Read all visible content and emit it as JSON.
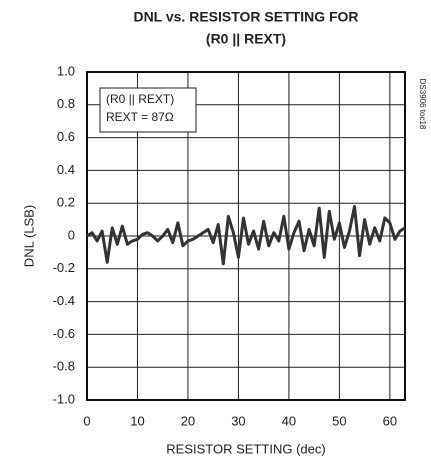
{
  "chart_data": {
    "type": "line",
    "title": "DNL vs. RESISTOR SETTING FOR",
    "subtitle": "(R0 || REXT)",
    "xlabel": "RESISTOR SETTING (dec)",
    "ylabel": "DNL (LSB)",
    "annotations": [
      "(R0 || REXT)",
      "REXT = 87Ω"
    ],
    "side_note": "DS3906 toc18",
    "x": [
      0,
      1,
      2,
      3,
      4,
      5,
      6,
      7,
      8,
      9,
      10,
      11,
      12,
      13,
      14,
      15,
      16,
      17,
      18,
      19,
      20,
      21,
      22,
      23,
      24,
      25,
      26,
      27,
      28,
      29,
      30,
      31,
      32,
      33,
      34,
      35,
      36,
      37,
      38,
      39,
      40,
      41,
      42,
      43,
      44,
      45,
      46,
      47,
      48,
      49,
      50,
      51,
      52,
      53,
      54,
      55,
      56,
      57,
      58,
      59,
      60,
      61,
      62,
      63
    ],
    "series": [
      {
        "name": "DNL",
        "color": "#333333",
        "values": [
          0.0,
          0.02,
          -0.03,
          0.03,
          -0.16,
          0.05,
          -0.05,
          0.06,
          -0.05,
          -0.03,
          -0.02,
          0.01,
          0.02,
          0.0,
          -0.03,
          0.0,
          0.04,
          -0.04,
          0.08,
          -0.06,
          -0.03,
          -0.02,
          0.0,
          0.02,
          0.04,
          -0.04,
          0.07,
          -0.17,
          0.12,
          0.02,
          -0.13,
          0.11,
          -0.05,
          0.03,
          -0.08,
          0.09,
          -0.06,
          0.02,
          -0.03,
          0.12,
          -0.08,
          0.02,
          0.09,
          -0.09,
          0.04,
          -0.06,
          0.17,
          -0.13,
          0.15,
          -0.02,
          0.08,
          -0.07,
          0.03,
          0.18,
          -0.12,
          0.1,
          -0.05,
          0.05,
          -0.03,
          0.11,
          0.08,
          -0.02,
          0.03,
          0.05
        ]
      }
    ],
    "xlim": [
      0,
      63
    ],
    "xticks": [
      0,
      10,
      20,
      30,
      40,
      50,
      60
    ],
    "ylim": [
      -1,
      1
    ],
    "yticks": [
      {
        "value": -1,
        "label": "-1.0"
      },
      -0.8,
      -0.6,
      -0.4,
      -0.2,
      0,
      0.2,
      0.4,
      0.6,
      0.8,
      {
        "value": 1,
        "label": "1.0"
      }
    ],
    "grid": true
  }
}
